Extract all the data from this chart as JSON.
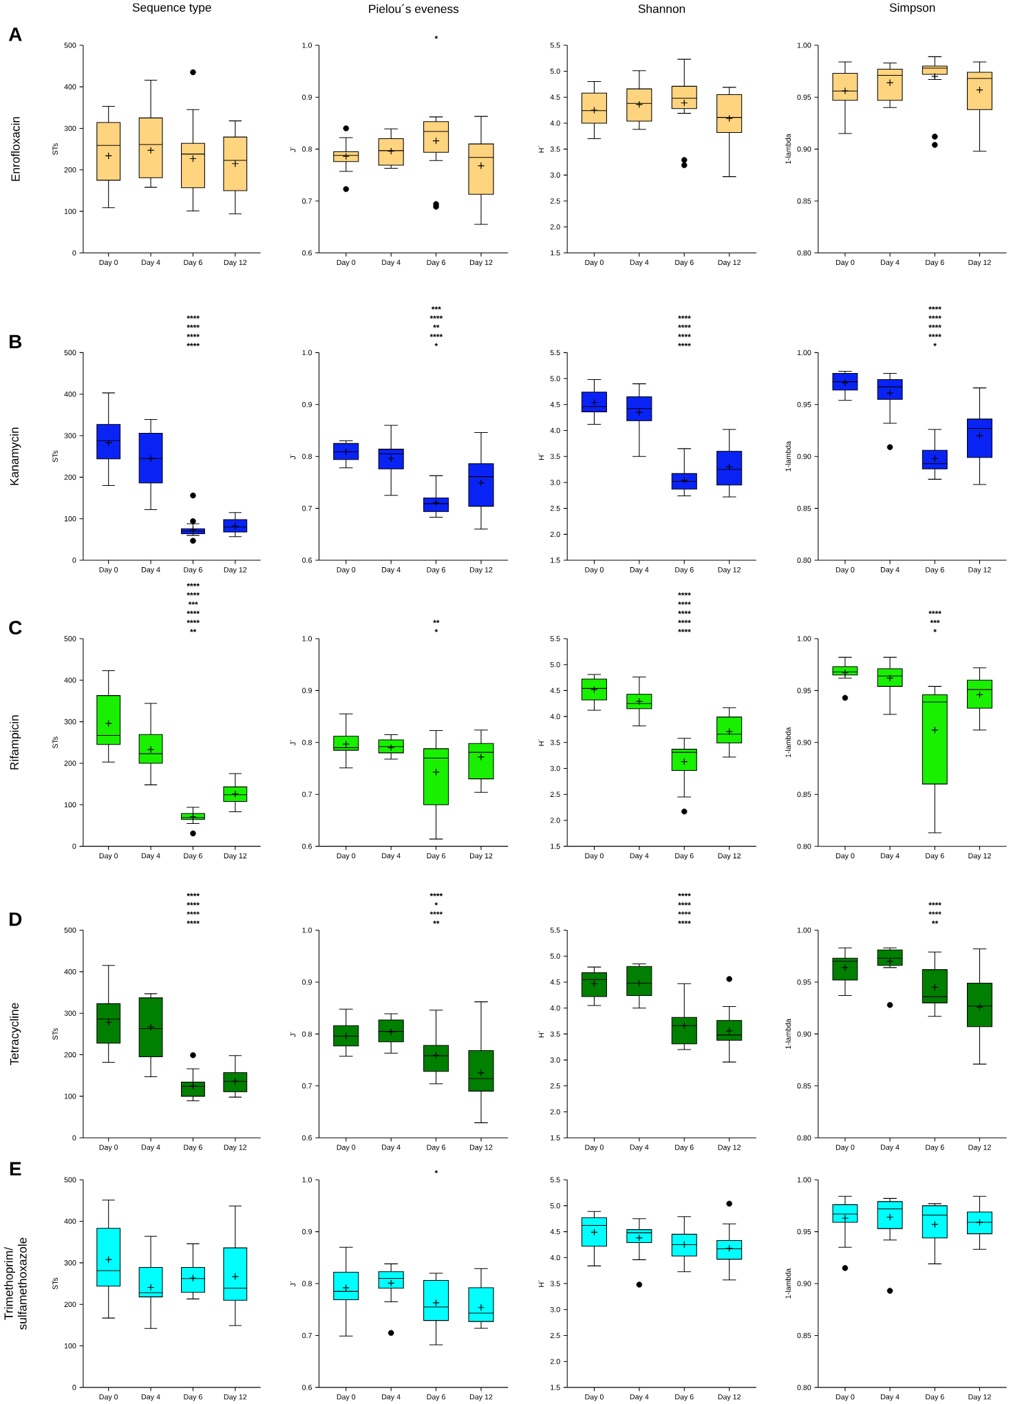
{
  "chart_data": [
    {
      "type": "box",
      "title": "Sequence type",
      "ylabel": "STs",
      "color": "#ffd47f",
      "categories": [
        "Day 0",
        "Day 4",
        "Day 6",
        "Day 12"
      ],
      "ylim": [
        0,
        500
      ],
      "yticks": [
        0,
        100,
        200,
        300,
        400,
        500
      ],
      "annotations": [
        "A",
        "Enrofloxacin"
      ],
      "boxes": [
        {
          "low": 109,
          "q1": 175,
          "median": 259,
          "q3": 314,
          "high": 353,
          "mean": 234
        },
        {
          "low": 158,
          "q1": 181,
          "median": 261,
          "q3": 325,
          "high": 416,
          "mean": 247
        },
        {
          "low": 101,
          "q1": 157,
          "median": 238,
          "q3": 264,
          "high": 345,
          "mean": 227,
          "outliers": [
            435
          ]
        },
        {
          "low": 94,
          "q1": 150,
          "median": 223,
          "q3": 279,
          "high": 318,
          "mean": 215
        }
      ]
    },
    {
      "type": "box",
      "title": "Pielou´s eveness",
      "ylabel": "J´",
      "color": "#ffd47f",
      "categories": [
        "Day 0",
        "Day 4",
        "Day 6",
        "Day 12"
      ],
      "ylim": [
        0.6,
        1.0
      ],
      "yticks": [
        0.6,
        0.7,
        0.8,
        0.9,
        {
          "value": 1.0,
          "label": "1.0"
        }
      ],
      "annotations": [
        "*"
      ],
      "boxes": [
        {
          "low": 0.757,
          "q1": 0.776,
          "median": 0.788,
          "q3": 0.795,
          "high": 0.822,
          "mean": 0.786,
          "outliers": [
            0.84,
            0.723
          ]
        },
        {
          "low": 0.763,
          "q1": 0.769,
          "median": 0.797,
          "q3": 0.82,
          "high": 0.839,
          "mean": 0.796
        },
        {
          "low": 0.778,
          "q1": 0.794,
          "median": 0.834,
          "q3": 0.853,
          "high": 0.862,
          "mean": 0.816,
          "outliers": [
            0.689,
            0.694
          ]
        },
        {
          "low": 0.655,
          "q1": 0.713,
          "median": 0.784,
          "q3": 0.81,
          "high": 0.863,
          "mean": 0.768
        }
      ]
    },
    {
      "type": "box",
      "title": "Shannon",
      "ylabel": "H´",
      "color": "#ffd47f",
      "categories": [
        "Day 0",
        "Day 4",
        "Day 6",
        "Day 12"
      ],
      "ylim": [
        1.5,
        5.5
      ],
      "yticks": [
        1.5,
        {
          "value": 2.0,
          "label": "2.0"
        },
        2.5,
        {
          "value": 3.0,
          "label": "3.0"
        },
        3.5,
        {
          "value": 4.0,
          "label": "4.0"
        },
        4.5,
        {
          "value": 5.0,
          "label": "5.0"
        },
        5.5
      ],
      "boxes": [
        {
          "low": 3.7,
          "q1": 4.0,
          "median": 4.24,
          "q3": 4.58,
          "high": 4.8,
          "mean": 4.25
        },
        {
          "low": 3.88,
          "q1": 4.04,
          "median": 4.38,
          "q3": 4.66,
          "high": 5.01,
          "mean": 4.36
        },
        {
          "low": 4.19,
          "q1": 4.28,
          "median": 4.48,
          "q3": 4.71,
          "high": 5.23,
          "mean": 4.39,
          "outliers": [
            3.19,
            3.29
          ]
        },
        {
          "low": 2.97,
          "q1": 3.82,
          "median": 4.11,
          "q3": 4.55,
          "high": 4.69,
          "mean": 4.09
        }
      ]
    },
    {
      "type": "box",
      "title": "Simpson",
      "ylabel": "1-lambda",
      "color": "#ffd47f",
      "categories": [
        "Day 0",
        "Day 4",
        "Day 6",
        "Day 12"
      ],
      "ylim": [
        0.8,
        1.0
      ],
      "yticks": [
        {
          "value": 0.8,
          "label": "0.80"
        },
        0.85,
        {
          "value": 0.9,
          "label": "0.90"
        },
        0.95,
        {
          "value": 1.0,
          "label": "1.00"
        }
      ],
      "boxes": [
        {
          "low": 0.915,
          "q1": 0.947,
          "median": 0.956,
          "q3": 0.973,
          "high": 0.984,
          "mean": 0.956
        },
        {
          "low": 0.94,
          "q1": 0.947,
          "median": 0.971,
          "q3": 0.977,
          "high": 0.983,
          "mean": 0.964
        },
        {
          "low": 0.967,
          "q1": 0.972,
          "median": 0.978,
          "q3": 0.98,
          "high": 0.989,
          "mean": 0.97,
          "outliers": [
            0.912,
            0.904
          ]
        },
        {
          "low": 0.898,
          "q1": 0.938,
          "median": 0.968,
          "q3": 0.974,
          "high": 0.984,
          "mean": 0.957
        }
      ]
    },
    {
      "type": "box",
      "ylabel": "STs",
      "color": "#0a23f5",
      "categories": [
        "Day 0",
        "Day 4",
        "Day 6",
        "Day 12"
      ],
      "ylim": [
        0,
        500
      ],
      "yticks": [
        0,
        100,
        200,
        300,
        400,
        500
      ],
      "annotations": [
        "B",
        "Kanamycin",
        "****",
        "****",
        "****",
        "****"
      ],
      "boxes": [
        {
          "low": 180,
          "q1": 244,
          "median": 288,
          "q3": 327,
          "high": 403,
          "mean": 283
        },
        {
          "low": 122,
          "q1": 186,
          "median": 245,
          "q3": 306,
          "high": 339,
          "mean": 245
        },
        {
          "low": 60,
          "q1": 64,
          "median": 70,
          "q3": 76,
          "high": 88,
          "mean": 73,
          "outliers": [
            156,
            94,
            47
          ]
        },
        {
          "low": 57,
          "q1": 68,
          "median": 80,
          "q3": 98,
          "high": 115,
          "mean": 83
        }
      ]
    },
    {
      "type": "box",
      "ylabel": "J´",
      "color": "#0a23f5",
      "categories": [
        "Day 0",
        "Day 4",
        "Day 6",
        "Day 12"
      ],
      "ylim": [
        0.6,
        1.0
      ],
      "yticks": [
        0.6,
        0.7,
        0.8,
        0.9,
        {
          "value": 1.0,
          "label": "1.0"
        }
      ],
      "annotations": [
        "***",
        "****",
        "**",
        "****",
        "*"
      ],
      "boxes": [
        {
          "low": 0.778,
          "q1": 0.794,
          "median": 0.809,
          "q3": 0.825,
          "high": 0.83,
          "mean": 0.809
        },
        {
          "low": 0.725,
          "q1": 0.776,
          "median": 0.805,
          "q3": 0.814,
          "high": 0.86,
          "mean": 0.796
        },
        {
          "low": 0.683,
          "q1": 0.694,
          "median": 0.709,
          "q3": 0.72,
          "high": 0.763,
          "mean": 0.711
        },
        {
          "low": 0.66,
          "q1": 0.704,
          "median": 0.761,
          "q3": 0.786,
          "high": 0.846,
          "mean": 0.749
        }
      ]
    },
    {
      "type": "box",
      "ylabel": "H´",
      "color": "#0a23f5",
      "categories": [
        "Day 0",
        "Day 4",
        "Day 6",
        "Day 12"
      ],
      "ylim": [
        1.5,
        5.5
      ],
      "yticks": [
        1.5,
        {
          "value": 2.0,
          "label": "2.0"
        },
        2.5,
        {
          "value": 3.0,
          "label": "3.0"
        },
        3.5,
        {
          "value": 4.0,
          "label": "4.0"
        },
        4.5,
        {
          "value": 5.0,
          "label": "5.0"
        },
        5.5
      ],
      "annotations": [
        "****",
        "****",
        "****",
        "****"
      ],
      "boxes": [
        {
          "low": 4.12,
          "q1": 4.36,
          "median": 4.46,
          "q3": 4.74,
          "high": 4.98,
          "mean": 4.54
        },
        {
          "low": 3.5,
          "q1": 4.19,
          "median": 4.42,
          "q3": 4.65,
          "high": 4.9,
          "mean": 4.35
        },
        {
          "low": 2.74,
          "q1": 2.87,
          "median": 3.02,
          "q3": 3.17,
          "high": 3.65,
          "mean": 3.04
        },
        {
          "low": 2.72,
          "q1": 2.95,
          "median": 3.25,
          "q3": 3.6,
          "high": 4.02,
          "mean": 3.3
        }
      ]
    },
    {
      "type": "box",
      "ylabel": "1-lambda",
      "color": "#0a23f5",
      "categories": [
        "Day 0",
        "Day 4",
        "Day 6",
        "Day 12"
      ],
      "ylim": [
        0.8,
        1.0
      ],
      "yticks": [
        {
          "value": 0.8,
          "label": "0.80"
        },
        0.85,
        {
          "value": 0.9,
          "label": "0.90"
        },
        0.95,
        {
          "value": 1.0,
          "label": "1.00"
        }
      ],
      "annotations": [
        "****",
        "****",
        "****",
        "****",
        "*"
      ],
      "boxes": [
        {
          "low": 0.954,
          "q1": 0.964,
          "median": 0.972,
          "q3": 0.98,
          "high": 0.982,
          "mean": 0.971
        },
        {
          "low": 0.932,
          "q1": 0.955,
          "median": 0.967,
          "q3": 0.974,
          "high": 0.98,
          "mean": 0.961,
          "outliers": [
            0.909
          ]
        },
        {
          "low": 0.878,
          "q1": 0.888,
          "median": 0.893,
          "q3": 0.906,
          "high": 0.926,
          "mean": 0.898
        },
        {
          "low": 0.873,
          "q1": 0.899,
          "median": 0.927,
          "q3": 0.936,
          "high": 0.966,
          "mean": 0.92
        }
      ]
    },
    {
      "type": "box",
      "ylabel": "STs",
      "color": "#19f000",
      "categories": [
        "Day 0",
        "Day 4",
        "Day 6",
        "Day 12"
      ],
      "ylim": [
        0,
        500
      ],
      "yticks": [
        0,
        100,
        200,
        300,
        400,
        500
      ],
      "annotations": [
        "C",
        "Rifampicin",
        "****",
        "****",
        "***",
        "****",
        "****",
        "**"
      ],
      "boxes": [
        {
          "low": 203,
          "q1": 245,
          "median": 267,
          "q3": 363,
          "high": 423,
          "mean": 296
        },
        {
          "low": 148,
          "q1": 200,
          "median": 223,
          "q3": 269,
          "high": 344,
          "mean": 233
        },
        {
          "low": 55,
          "q1": 65,
          "median": 69,
          "q3": 79,
          "high": 94,
          "mean": 71,
          "outliers": [
            31
          ]
        },
        {
          "low": 83,
          "q1": 108,
          "median": 124,
          "q3": 143,
          "high": 175,
          "mean": 126
        }
      ]
    },
    {
      "type": "box",
      "ylabel": "J´",
      "color": "#19f000",
      "categories": [
        "Day 0",
        "Day 4",
        "Day 6",
        "Day 12"
      ],
      "ylim": [
        0.6,
        1.0
      ],
      "yticks": [
        0.6,
        0.7,
        0.8,
        0.9,
        {
          "value": 1.0,
          "label": "1.0"
        }
      ],
      "annotations": [
        "**",
        "*"
      ],
      "boxes": [
        {
          "low": 0.751,
          "q1": 0.785,
          "median": 0.79,
          "q3": 0.812,
          "high": 0.855,
          "mean": 0.797
        },
        {
          "low": 0.768,
          "q1": 0.78,
          "median": 0.792,
          "q3": 0.805,
          "high": 0.815,
          "mean": 0.79
        },
        {
          "low": 0.614,
          "q1": 0.68,
          "median": 0.77,
          "q3": 0.788,
          "high": 0.823,
          "mean": 0.743
        },
        {
          "low": 0.704,
          "q1": 0.73,
          "median": 0.781,
          "q3": 0.798,
          "high": 0.824,
          "mean": 0.772
        }
      ]
    },
    {
      "type": "box",
      "ylabel": "H´",
      "color": "#19f000",
      "categories": [
        "Day 0",
        "Day 4",
        "Day 6",
        "Day 12"
      ],
      "ylim": [
        1.5,
        5.5
      ],
      "yticks": [
        1.5,
        {
          "value": 2.0,
          "label": "2.0"
        },
        2.5,
        {
          "value": 3.0,
          "label": "3.0"
        },
        3.5,
        {
          "value": 4.0,
          "label": "4.0"
        },
        4.5,
        {
          "value": 5.0,
          "label": "5.0"
        },
        5.5
      ],
      "annotations": [
        "****",
        "****",
        "****",
        "****",
        "****"
      ],
      "boxes": [
        {
          "low": 4.12,
          "q1": 4.32,
          "median": 4.54,
          "q3": 4.72,
          "high": 4.81,
          "mean": 4.52
        },
        {
          "low": 3.82,
          "q1": 4.15,
          "median": 4.25,
          "q3": 4.43,
          "high": 4.76,
          "mean": 4.29
        },
        {
          "low": 2.45,
          "q1": 2.96,
          "median": 3.31,
          "q3": 3.37,
          "high": 3.58,
          "mean": 3.13,
          "outliers": [
            2.17
          ]
        },
        {
          "low": 3.22,
          "q1": 3.49,
          "median": 3.66,
          "q3": 3.99,
          "high": 4.17,
          "mean": 3.71
        }
      ]
    },
    {
      "type": "box",
      "ylabel": "1-lambda",
      "color": "#19f000",
      "categories": [
        "Day 0",
        "Day 4",
        "Day 6",
        "Day 12"
      ],
      "ylim": [
        0.8,
        1.0
      ],
      "yticks": [
        {
          "value": 0.8,
          "label": "0.80"
        },
        0.85,
        {
          "value": 0.9,
          "label": "0.90"
        },
        0.95,
        {
          "value": 1.0,
          "label": "1.00"
        }
      ],
      "annotations": [
        "****",
        "***",
        "*"
      ],
      "boxes": [
        {
          "low": 0.962,
          "q1": 0.965,
          "median": 0.968,
          "q3": 0.973,
          "high": 0.982,
          "mean": 0.967,
          "outliers": [
            0.943
          ]
        },
        {
          "low": 0.927,
          "q1": 0.954,
          "median": 0.964,
          "q3": 0.971,
          "high": 0.982,
          "mean": 0.962
        },
        {
          "low": 0.813,
          "q1": 0.86,
          "median": 0.939,
          "q3": 0.946,
          "high": 0.954,
          "mean": 0.912
        },
        {
          "low": 0.912,
          "q1": 0.933,
          "median": 0.951,
          "q3": 0.96,
          "high": 0.972,
          "mean": 0.946
        }
      ]
    },
    {
      "type": "box",
      "ylabel": "STs",
      "color": "#007f00",
      "categories": [
        "Day 0",
        "Day 4",
        "Day 6",
        "Day 12"
      ],
      "ylim": [
        0,
        500
      ],
      "yticks": [
        0,
        100,
        200,
        300,
        400,
        500
      ],
      "annotations": [
        "D",
        "Tetracycline",
        "****",
        "****",
        "****",
        "****"
      ],
      "boxes": [
        {
          "low": 182,
          "q1": 228,
          "median": 286,
          "q3": 323,
          "high": 415,
          "mean": 278
        },
        {
          "low": 147,
          "q1": 195,
          "median": 263,
          "q3": 337,
          "high": 347,
          "mean": 267
        },
        {
          "low": 89,
          "q1": 100,
          "median": 124,
          "q3": 134,
          "high": 166,
          "mean": 125,
          "outliers": [
            199
          ]
        },
        {
          "low": 98,
          "q1": 111,
          "median": 136,
          "q3": 157,
          "high": 198,
          "mean": 136
        }
      ]
    },
    {
      "type": "box",
      "ylabel": "J´",
      "color": "#007f00",
      "categories": [
        "Day 0",
        "Day 4",
        "Day 6",
        "Day 12"
      ],
      "ylim": [
        0.6,
        1.0
      ],
      "yticks": [
        0.6,
        0.7,
        0.8,
        0.9,
        {
          "value": 1.0,
          "label": "1.0"
        }
      ],
      "annotations": [
        "****",
        "*",
        "****",
        "**"
      ],
      "boxes": [
        {
          "low": 0.757,
          "q1": 0.777,
          "median": 0.796,
          "q3": 0.816,
          "high": 0.848,
          "mean": 0.796
        },
        {
          "low": 0.763,
          "q1": 0.785,
          "median": 0.805,
          "q3": 0.827,
          "high": 0.839,
          "mean": 0.804
        },
        {
          "low": 0.704,
          "q1": 0.728,
          "median": 0.758,
          "q3": 0.778,
          "high": 0.846,
          "mean": 0.759
        },
        {
          "low": 0.629,
          "q1": 0.69,
          "median": 0.714,
          "q3": 0.768,
          "high": 0.862,
          "mean": 0.725
        }
      ]
    },
    {
      "type": "box",
      "ylabel": "H´",
      "color": "#007f00",
      "categories": [
        "Day 0",
        "Day 4",
        "Day 6",
        "Day 12"
      ],
      "ylim": [
        1.5,
        5.5
      ],
      "yticks": [
        1.5,
        {
          "value": 2.0,
          "label": "2.0"
        },
        2.5,
        {
          "value": 3.0,
          "label": "3.0"
        },
        3.5,
        {
          "value": 4.0,
          "label": "4.0"
        },
        4.5,
        {
          "value": 5.0,
          "label": "5.0"
        },
        5.5
      ],
      "annotations": [
        "****",
        "****",
        "****",
        "****"
      ],
      "boxes": [
        {
          "low": 4.05,
          "q1": 4.22,
          "median": 4.55,
          "q3": 4.68,
          "high": 4.79,
          "mean": 4.47
        },
        {
          "low": 4.0,
          "q1": 4.24,
          "median": 4.48,
          "q3": 4.8,
          "high": 4.85,
          "mean": 4.48
        },
        {
          "low": 3.2,
          "q1": 3.31,
          "median": 3.66,
          "q3": 3.82,
          "high": 4.47,
          "mean": 3.66
        },
        {
          "low": 2.96,
          "q1": 3.38,
          "median": 3.48,
          "q3": 3.76,
          "high": 4.03,
          "mean": 3.56,
          "outliers": [
            4.56
          ]
        }
      ]
    },
    {
      "type": "box",
      "ylabel": "1-lambda",
      "color": "#007f00",
      "categories": [
        "Day 0",
        "Day 4",
        "Day 6",
        "Day 12"
      ],
      "ylim": [
        0.8,
        1.0
      ],
      "yticks": [
        {
          "value": 0.8,
          "label": "0.80"
        },
        0.85,
        {
          "value": 0.9,
          "label": "0.90"
        },
        0.95,
        {
          "value": 1.0,
          "label": "1.00"
        }
      ],
      "annotations": [
        "****",
        "****",
        "**"
      ],
      "boxes": [
        {
          "low": 0.937,
          "q1": 0.952,
          "median": 0.97,
          "q3": 0.973,
          "high": 0.983,
          "mean": 0.964
        },
        {
          "low": 0.964,
          "q1": 0.966,
          "median": 0.973,
          "q3": 0.981,
          "high": 0.983,
          "mean": 0.97,
          "outliers": [
            0.928
          ]
        },
        {
          "low": 0.917,
          "q1": 0.93,
          "median": 0.936,
          "q3": 0.962,
          "high": 0.979,
          "mean": 0.945
        },
        {
          "low": 0.871,
          "q1": 0.907,
          "median": 0.927,
          "q3": 0.949,
          "high": 0.982,
          "mean": 0.926
        }
      ]
    },
    {
      "type": "box",
      "ylabel": "STs",
      "color": "#00ffff",
      "categories": [
        "Day 0",
        "Day 4",
        "Day 6",
        "Day 12"
      ],
      "ylim": [
        0,
        500
      ],
      "yticks": [
        0,
        100,
        200,
        300,
        400,
        500
      ],
      "annotations": [
        "E",
        "Trimethoprim/ sulfamethoxazole"
      ],
      "boxes": [
        {
          "low": 167,
          "q1": 244,
          "median": 281,
          "q3": 383,
          "high": 451,
          "mean": 308
        },
        {
          "low": 142,
          "q1": 218,
          "median": 228,
          "q3": 289,
          "high": 364,
          "mean": 241
        },
        {
          "low": 213,
          "q1": 229,
          "median": 262,
          "q3": 289,
          "high": 346,
          "mean": 263
        },
        {
          "low": 149,
          "q1": 210,
          "median": 239,
          "q3": 336,
          "high": 437,
          "mean": 267
        }
      ]
    },
    {
      "type": "box",
      "ylabel": "J´",
      "color": "#00ffff",
      "categories": [
        "Day 0",
        "Day 4",
        "Day 6",
        "Day 12"
      ],
      "ylim": [
        0.6,
        1.0
      ],
      "yticks": [
        0.6,
        0.7,
        0.8,
        0.9,
        {
          "value": 1.0,
          "label": "1.0"
        }
      ],
      "annotations": [
        "*"
      ],
      "boxes": [
        {
          "low": 0.699,
          "q1": 0.769,
          "median": 0.785,
          "q3": 0.822,
          "high": 0.87,
          "mean": 0.792
        },
        {
          "low": 0.765,
          "q1": 0.791,
          "median": 0.81,
          "q3": 0.823,
          "high": 0.838,
          "mean": 0.801,
          "outliers": [
            0.705
          ]
        },
        {
          "low": 0.682,
          "q1": 0.729,
          "median": 0.755,
          "q3": 0.806,
          "high": 0.82,
          "mean": 0.763
        },
        {
          "low": 0.714,
          "q1": 0.727,
          "median": 0.743,
          "q3": 0.792,
          "high": 0.829,
          "mean": 0.754
        }
      ]
    },
    {
      "type": "box",
      "ylabel": "H´",
      "color": "#00ffff",
      "categories": [
        "Day 0",
        "Day 4",
        "Day 6",
        "Day 12"
      ],
      "ylim": [
        1.5,
        5.5
      ],
      "yticks": [
        1.5,
        {
          "value": 2.0,
          "label": "2.0"
        },
        2.5,
        {
          "value": 3.0,
          "label": "3.0"
        },
        3.5,
        {
          "value": 4.0,
          "label": "4.0"
        },
        4.5,
        {
          "value": 5.0,
          "label": "5.0"
        },
        5.5
      ],
      "boxes": [
        {
          "low": 3.84,
          "q1": 4.22,
          "median": 4.62,
          "q3": 4.77,
          "high": 4.89,
          "mean": 4.49
        },
        {
          "low": 3.96,
          "q1": 4.29,
          "median": 4.48,
          "q3": 4.54,
          "high": 4.75,
          "mean": 4.38,
          "outliers": [
            3.48
          ]
        },
        {
          "low": 3.73,
          "q1": 4.03,
          "median": 4.25,
          "q3": 4.45,
          "high": 4.79,
          "mean": 4.25
        },
        {
          "low": 3.57,
          "q1": 3.97,
          "median": 4.17,
          "q3": 4.33,
          "high": 4.65,
          "mean": 4.18,
          "outliers": [
            5.04
          ]
        }
      ]
    },
    {
      "type": "box",
      "ylabel": "1-lambda",
      "color": "#00ffff",
      "categories": [
        "Day 0",
        "Day 4",
        "Day 6",
        "Day 12"
      ],
      "ylim": [
        0.8,
        1.0
      ],
      "yticks": [
        {
          "value": 0.8,
          "label": "0.80"
        },
        0.85,
        {
          "value": 0.9,
          "label": "0.90"
        },
        0.95,
        {
          "value": 1.0,
          "label": "1.00"
        }
      ],
      "boxes": [
        {
          "low": 0.935,
          "q1": 0.959,
          "median": 0.967,
          "q3": 0.976,
          "high": 0.984,
          "mean": 0.963,
          "outliers": [
            0.915
          ]
        },
        {
          "low": 0.942,
          "q1": 0.953,
          "median": 0.972,
          "q3": 0.979,
          "high": 0.982,
          "mean": 0.964,
          "outliers": [
            0.893
          ]
        },
        {
          "low": 0.919,
          "q1": 0.944,
          "median": 0.966,
          "q3": 0.975,
          "high": 0.977,
          "mean": 0.957
        },
        {
          "low": 0.933,
          "q1": 0.948,
          "median": 0.959,
          "q3": 0.969,
          "high": 0.984,
          "mean": 0.959
        }
      ]
    }
  ]
}
